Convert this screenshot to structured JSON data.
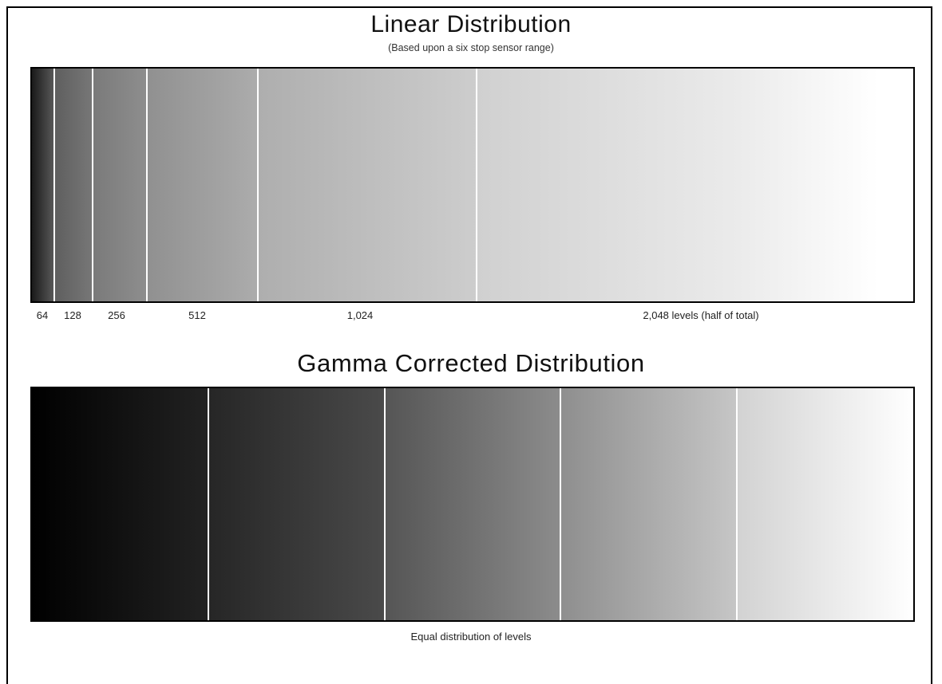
{
  "linear": {
    "title": "Linear Distribution",
    "subtitle": "(Based upon a six stop sensor range)",
    "labels": [
      "64",
      "128",
      "256",
      "512",
      "1,024",
      "2,048 levels (half of total)"
    ],
    "stops": [
      64,
      128,
      256,
      512,
      1024,
      2048
    ]
  },
  "gamma": {
    "title": "Gamma Corrected Distribution",
    "caption": "Equal distribution of levels",
    "segments": 5
  },
  "colors": {
    "frame": "#000000",
    "divider": "#ffffff",
    "dark": "#000000",
    "light": "#ffffff"
  }
}
